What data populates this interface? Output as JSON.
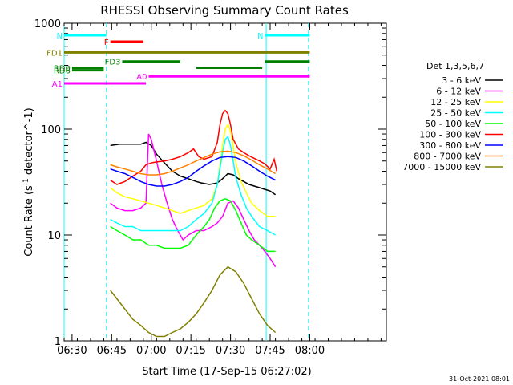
{
  "chart_data": {
    "type": "line",
    "title": "RHESSI Observing Summary Count Rates",
    "xlabel": "Start Time (17-Sep-15 06:27:02)",
    "ylabel": "Count Rate (s^-1 detector^-1)",
    "x_unit": "minutes after 06:27:02",
    "xlim": [
      0,
      122
    ],
    "ylim": [
      1,
      1000
    ],
    "yscale": "log",
    "x_ticks": [
      {
        "label": "06:30",
        "t": 3
      },
      {
        "label": "06:45",
        "t": 18
      },
      {
        "label": "07:00",
        "t": 33
      },
      {
        "label": "07:15",
        "t": 48
      },
      {
        "label": "07:30",
        "t": 63
      },
      {
        "label": "07:45",
        "t": 78
      },
      {
        "label": "08:00",
        "t": 93
      }
    ],
    "y_ticks": [
      1,
      10,
      100,
      1000
    ],
    "legend_title": "Det 1,3,5,6,7",
    "legend_position": "right",
    "footer_date": "31-Oct-2021 08:01",
    "series": [
      {
        "name": "3 - 6 keV",
        "color": "#000000",
        "points": [
          [
            17.5,
            70
          ],
          [
            21,
            72
          ],
          [
            25,
            72
          ],
          [
            29,
            72
          ],
          [
            31,
            75
          ],
          [
            33,
            70
          ],
          [
            35,
            58
          ],
          [
            38,
            48
          ],
          [
            41,
            40
          ],
          [
            44,
            36
          ],
          [
            47,
            34
          ],
          [
            50,
            32
          ],
          [
            52,
            31
          ],
          [
            55,
            30
          ],
          [
            58,
            31
          ],
          [
            60,
            34
          ],
          [
            62,
            38
          ],
          [
            64,
            37
          ],
          [
            66,
            34
          ],
          [
            68,
            32
          ],
          [
            70,
            30
          ],
          [
            72,
            29
          ],
          [
            74,
            28
          ],
          [
            76,
            27
          ],
          [
            78,
            26
          ],
          [
            80,
            24
          ]
        ]
      },
      {
        "name": "6 - 12 keV",
        "color": "#ff00ff",
        "points": [
          [
            17.5,
            20
          ],
          [
            20,
            18
          ],
          [
            23,
            17
          ],
          [
            26,
            17
          ],
          [
            29,
            18
          ],
          [
            31,
            20
          ],
          [
            32,
            90
          ],
          [
            33,
            80
          ],
          [
            35,
            50
          ],
          [
            37,
            30
          ],
          [
            39,
            20
          ],
          [
            41,
            14
          ],
          [
            43,
            11
          ],
          [
            45,
            9
          ],
          [
            47,
            10
          ],
          [
            50,
            11
          ],
          [
            53,
            11
          ],
          [
            56,
            12
          ],
          [
            58,
            13
          ],
          [
            60,
            15
          ],
          [
            62,
            20
          ],
          [
            64,
            21
          ],
          [
            66,
            18
          ],
          [
            68,
            14
          ],
          [
            70,
            11
          ],
          [
            72,
            9
          ],
          [
            74,
            8
          ],
          [
            76,
            7
          ],
          [
            78,
            6
          ],
          [
            80,
            5
          ]
        ]
      },
      {
        "name": "12 - 25 keV",
        "color": "#ffff00",
        "points": [
          [
            17.5,
            28
          ],
          [
            20,
            25
          ],
          [
            23,
            23
          ],
          [
            26,
            22
          ],
          [
            29,
            21
          ],
          [
            32,
            20
          ],
          [
            35,
            19
          ],
          [
            38,
            18
          ],
          [
            41,
            17
          ],
          [
            44,
            16
          ],
          [
            47,
            17
          ],
          [
            50,
            18
          ],
          [
            53,
            19
          ],
          [
            56,
            22
          ],
          [
            58,
            30
          ],
          [
            60,
            70
          ],
          [
            61,
            100
          ],
          [
            62,
            110
          ],
          [
            63,
            95
          ],
          [
            64,
            70
          ],
          [
            65,
            48
          ],
          [
            67,
            32
          ],
          [
            69,
            25
          ],
          [
            71,
            20
          ],
          [
            74,
            17
          ],
          [
            77,
            15
          ],
          [
            80,
            15
          ]
        ]
      },
      {
        "name": "25 - 50 keV",
        "color": "#00ffff",
        "points": [
          [
            17.5,
            14
          ],
          [
            20,
            13
          ],
          [
            23,
            12
          ],
          [
            26,
            12
          ],
          [
            29,
            11
          ],
          [
            32,
            11
          ],
          [
            35,
            11
          ],
          [
            38,
            11
          ],
          [
            41,
            11
          ],
          [
            44,
            11
          ],
          [
            47,
            12
          ],
          [
            50,
            14
          ],
          [
            53,
            16
          ],
          [
            56,
            20
          ],
          [
            58,
            30
          ],
          [
            60,
            60
          ],
          [
            61,
            80
          ],
          [
            62,
            85
          ],
          [
            63,
            70
          ],
          [
            64,
            50
          ],
          [
            65,
            35
          ],
          [
            67,
            24
          ],
          [
            69,
            18
          ],
          [
            71,
            15
          ],
          [
            74,
            12
          ],
          [
            77,
            11
          ],
          [
            80,
            10
          ]
        ]
      },
      {
        "name": "50 - 100 keV",
        "color": "#00ff00",
        "points": [
          [
            17.5,
            12
          ],
          [
            20,
            11
          ],
          [
            23,
            10
          ],
          [
            26,
            9
          ],
          [
            29,
            9
          ],
          [
            32,
            8
          ],
          [
            35,
            8
          ],
          [
            38,
            7.5
          ],
          [
            41,
            7.5
          ],
          [
            44,
            7.5
          ],
          [
            47,
            8
          ],
          [
            50,
            10
          ],
          [
            53,
            12
          ],
          [
            55,
            14
          ],
          [
            57,
            18
          ],
          [
            59,
            21
          ],
          [
            61,
            22
          ],
          [
            63,
            21
          ],
          [
            65,
            17
          ],
          [
            67,
            13
          ],
          [
            69,
            10
          ],
          [
            71,
            9
          ],
          [
            74,
            8
          ],
          [
            77,
            7
          ],
          [
            80,
            7
          ]
        ]
      },
      {
        "name": "100 - 300 keV",
        "color": "#ff0000",
        "points": [
          [
            17.5,
            33
          ],
          [
            20,
            30
          ],
          [
            23,
            32
          ],
          [
            26,
            36
          ],
          [
            29,
            40
          ],
          [
            31,
            46
          ],
          [
            33,
            48
          ],
          [
            35,
            49
          ],
          [
            38,
            50
          ],
          [
            41,
            52
          ],
          [
            44,
            55
          ],
          [
            47,
            60
          ],
          [
            49,
            65
          ],
          [
            51,
            55
          ],
          [
            53,
            52
          ],
          [
            56,
            55
          ],
          [
            58,
            75
          ],
          [
            59,
            110
          ],
          [
            60,
            140
          ],
          [
            61,
            150
          ],
          [
            62,
            140
          ],
          [
            63,
            110
          ],
          [
            64,
            80
          ],
          [
            66,
            65
          ],
          [
            68,
            60
          ],
          [
            70,
            56
          ],
          [
            72,
            53
          ],
          [
            74,
            50
          ],
          [
            76,
            47
          ],
          [
            78,
            42
          ],
          [
            79.5,
            52
          ],
          [
            80.5,
            40
          ]
        ]
      },
      {
        "name": "300 - 800 keV",
        "color": "#0000ff",
        "points": [
          [
            17.5,
            42
          ],
          [
            20,
            40
          ],
          [
            23,
            38
          ],
          [
            26,
            35
          ],
          [
            29,
            32
          ],
          [
            32,
            30
          ],
          [
            35,
            29
          ],
          [
            38,
            29
          ],
          [
            41,
            30
          ],
          [
            44,
            32
          ],
          [
            47,
            35
          ],
          [
            50,
            40
          ],
          [
            53,
            45
          ],
          [
            56,
            50
          ],
          [
            59,
            54
          ],
          [
            62,
            55
          ],
          [
            65,
            54
          ],
          [
            68,
            50
          ],
          [
            71,
            45
          ],
          [
            74,
            40
          ],
          [
            77,
            36
          ],
          [
            80,
            33
          ]
        ]
      },
      {
        "name": "800 - 7000 keV",
        "color": "#ff8000",
        "points": [
          [
            17.5,
            46
          ],
          [
            20,
            44
          ],
          [
            23,
            42
          ],
          [
            26,
            40
          ],
          [
            29,
            38
          ],
          [
            32,
            37
          ],
          [
            35,
            37
          ],
          [
            38,
            38
          ],
          [
            41,
            40
          ],
          [
            44,
            43
          ],
          [
            47,
            46
          ],
          [
            50,
            50
          ],
          [
            53,
            54
          ],
          [
            56,
            58
          ],
          [
            59,
            61
          ],
          [
            62,
            62
          ],
          [
            65,
            60
          ],
          [
            68,
            56
          ],
          [
            71,
            51
          ],
          [
            74,
            46
          ],
          [
            77,
            42
          ],
          [
            80,
            38
          ]
        ]
      },
      {
        "name": "7000 - 15000 keV",
        "color": "#808000",
        "points": [
          [
            17.5,
            3
          ],
          [
            20,
            2.5
          ],
          [
            23,
            2
          ],
          [
            26,
            1.6
          ],
          [
            29,
            1.4
          ],
          [
            32,
            1.2
          ],
          [
            35,
            1.1
          ],
          [
            38,
            1.1
          ],
          [
            41,
            1.2
          ],
          [
            44,
            1.3
          ],
          [
            47,
            1.5
          ],
          [
            50,
            1.8
          ],
          [
            53,
            2.3
          ],
          [
            56,
            3
          ],
          [
            59,
            4.2
          ],
          [
            62,
            5
          ],
          [
            65,
            4.5
          ],
          [
            68,
            3.5
          ],
          [
            71,
            2.5
          ],
          [
            74,
            1.8
          ],
          [
            77,
            1.4
          ],
          [
            80,
            1.2
          ]
        ]
      }
    ],
    "state_bars": [
      {
        "label": "N",
        "color": "#00ffff",
        "ratio": 770,
        "segments": [
          [
            0,
            16
          ]
        ]
      },
      {
        "label": "N",
        "color": "#00ffff",
        "ratio": 770,
        "segments": [
          [
            76,
            93
          ]
        ]
      },
      {
        "label": "F",
        "color": "#ff0000",
        "ratio": 670,
        "segments": [
          [
            17.5,
            30
          ]
        ]
      },
      {
        "label": "FD1",
        "color": "#808000",
        "ratio": 530,
        "segments": [
          [
            0,
            93
          ]
        ]
      },
      {
        "label": "FD3",
        "color": "#008000",
        "ratio": 435,
        "segments": [
          [
            22,
            44
          ],
          [
            76,
            93
          ]
        ]
      },
      {
        "label": "RD0",
        "color": "#008000",
        "ratio": 380,
        "segments": [
          [
            3,
            15
          ],
          [
            50,
            75
          ]
        ]
      },
      {
        "label": "RD6",
        "color": "#008000",
        "ratio": 360,
        "segments": [
          [
            3,
            15
          ]
        ]
      },
      {
        "label": "A0",
        "color": "#ff00ff",
        "ratio": 315,
        "segments": [
          [
            32,
            93
          ]
        ]
      },
      {
        "label": "A1",
        "color": "#ff00ff",
        "ratio": 270,
        "segments": [
          [
            0,
            31
          ]
        ]
      }
    ],
    "vertical_lines": [
      {
        "t": 0,
        "color": "#00ffff",
        "style": "solid"
      },
      {
        "t": 16,
        "color": "#00ffff",
        "style": "dashed"
      },
      {
        "t": 76.5,
        "color": "#00ffff",
        "style": "solid"
      },
      {
        "t": 92.5,
        "color": "#00ffff",
        "style": "dashed"
      }
    ]
  }
}
